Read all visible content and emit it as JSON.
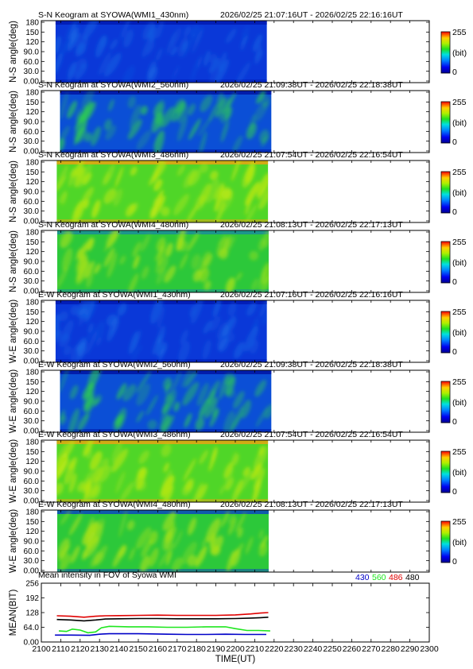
{
  "colorbar": {
    "max_label": "255",
    "unit_label": "(bit)",
    "min_label": "0"
  },
  "keogram_ylabel_ns": "N-S angle(deg)",
  "keogram_ylabel_we": "W-E angle(deg)",
  "keogram_yticks": [
    "180",
    "150",
    "120",
    "90.0",
    "60.0",
    "30.0",
    "0.00"
  ],
  "panels": [
    {
      "title": "S-N Keogram at SYOWA(WMI1_430nm)",
      "time_range": "2026/02/25 21:07:16UT - 2026/02/25 22:16:16UT",
      "ylabel": "N-S angle(deg)",
      "data_start_min": 2107.3,
      "data_end_min": 2216.3,
      "intensity_level": 0.12,
      "colors": {
        "base": "#0a38d8",
        "blob": "#1a70e6",
        "edge": "#0018b0"
      }
    },
    {
      "title": "S-N Keogram at SYOWA(WMI2_560nm)",
      "time_range": "2026/02/25 21:09:38UT - 2026/02/25 22:18:38UT",
      "ylabel": "N-S angle(deg)",
      "data_start_min": 2109.6,
      "data_end_min": 2218.6,
      "intensity_level": 0.3,
      "colors": {
        "base": "#0b4fd6",
        "blob": "#2fd44a",
        "edge": "#0010a0"
      }
    },
    {
      "title": "S-N Keogram at SYOWA(WMI3_486nm)",
      "time_range": "2026/02/25 21:07:54UT - 2026/02/25 22:16:54UT",
      "ylabel": "N-S angle(deg)",
      "data_start_min": 2107.9,
      "data_end_min": 2216.9,
      "intensity_level": 0.6,
      "colors": {
        "base": "#4fd628",
        "blob": "#b8e814",
        "edge": "#f0a010"
      }
    },
    {
      "title": "S-N Keogram at SYOWA(WMI4_480nm)",
      "time_range": "2026/02/25 21:08:13UT - 2026/02/25 22:17:13UT",
      "ylabel": "N-S angle(deg)",
      "data_start_min": 2108.2,
      "data_end_min": 2217.2,
      "intensity_level": 0.55,
      "colors": {
        "base": "#2cc83a",
        "blob": "#a6e21a",
        "edge": "#1a8aa0"
      }
    },
    {
      "title": "E-W Keogram at SYOWA(WMI1_430nm)",
      "time_range": "2026/02/25 21:07:16UT - 2026/02/25 22:16:16UT",
      "ylabel": "W-E angle(deg)",
      "data_start_min": 2107.3,
      "data_end_min": 2216.3,
      "intensity_level": 0.12,
      "colors": {
        "base": "#0a38d8",
        "blob": "#1a70e6",
        "edge": "#0018b0"
      }
    },
    {
      "title": "E-W Keogram at SYOWA(WMI2_560nm)",
      "time_range": "2026/02/25 21:09:38UT - 2026/02/25 22:18:38UT",
      "ylabel": "W-E angle(deg)",
      "data_start_min": 2109.6,
      "data_end_min": 2218.6,
      "intensity_level": 0.3,
      "colors": {
        "base": "#0b4fd6",
        "blob": "#2fd44a",
        "edge": "#0010a0"
      }
    },
    {
      "title": "E-W Keogram at SYOWA(WMI3_486nm)",
      "time_range": "2026/02/25 21:07:54UT - 2026/02/25 22:16:54UT",
      "ylabel": "W-E angle(deg)",
      "data_start_min": 2107.9,
      "data_end_min": 2216.9,
      "intensity_level": 0.6,
      "colors": {
        "base": "#4fd628",
        "blob": "#b8e814",
        "edge": "#f0a010"
      }
    },
    {
      "title": "E-W Keogram at SYOWA(WMI4_480nm)",
      "time_range": "2026/02/25 21:08:13UT - 2026/02/25 22:17:13UT",
      "ylabel": "W-E angle(deg)",
      "data_start_min": 2108.2,
      "data_end_min": 2217.2,
      "intensity_level": 0.55,
      "colors": {
        "base": "#2cc83a",
        "blob": "#a6e21a",
        "edge": "#0a40c8"
      }
    }
  ],
  "chart_data": {
    "type": "line",
    "title": "Mean intensity in FOV of Syowa WMI",
    "xlabel": "TIME(UT)",
    "ylabel": "MEAN(BIT)",
    "xlim": [
      2100,
      2300
    ],
    "ylim": [
      0,
      256
    ],
    "x_ticks": [
      "2100",
      "2110",
      "2120",
      "2130",
      "2140",
      "2150",
      "2160",
      "2170",
      "2180",
      "2190",
      "2200",
      "2210",
      "2220",
      "2230",
      "2240",
      "2250",
      "2260",
      "2270",
      "2280",
      "2290",
      "2300"
    ],
    "y_ticks": [
      "256",
      "192",
      "128",
      "64.0",
      "0.00"
    ],
    "series": [
      {
        "name": "430",
        "color": "#0000c8",
        "x": [
          2107,
          2115,
          2125,
          2130,
          2135,
          2150,
          2165,
          2175,
          2185,
          2195,
          2205,
          2216
        ],
        "values": [
          30,
          30,
          29,
          34,
          36,
          36,
          34,
          33,
          33,
          34,
          33,
          33
        ]
      },
      {
        "name": "560",
        "color": "#1ee61e",
        "x": [
          2109,
          2113,
          2116,
          2120,
          2124,
          2128,
          2131,
          2135,
          2145,
          2155,
          2165,
          2175,
          2185,
          2195,
          2200,
          2206,
          2212,
          2218
        ],
        "values": [
          48,
          46,
          56,
          52,
          40,
          44,
          62,
          68,
          66,
          66,
          64,
          64,
          66,
          66,
          58,
          50,
          50,
          48
        ]
      },
      {
        "name": "486",
        "color": "#e00000",
        "x": [
          2108,
          2115,
          2122,
          2128,
          2133,
          2140,
          2150,
          2160,
          2170,
          2180,
          2190,
          2200,
          2208,
          2213,
          2217
        ],
        "values": [
          114,
          112,
          108,
          112,
          114,
          115,
          116,
          117,
          116,
          116,
          116,
          118,
          122,
          126,
          128
        ]
      },
      {
        "name": "480",
        "color": "#000000",
        "x": [
          2108,
          2115,
          2122,
          2128,
          2133,
          2140,
          2150,
          2160,
          2170,
          2180,
          2190,
          2200,
          2208,
          2213,
          2217
        ],
        "values": [
          98,
          96,
          92,
          96,
          100,
          101,
          102,
          102,
          101,
          101,
          101,
          102,
          104,
          106,
          108
        ]
      }
    ]
  }
}
